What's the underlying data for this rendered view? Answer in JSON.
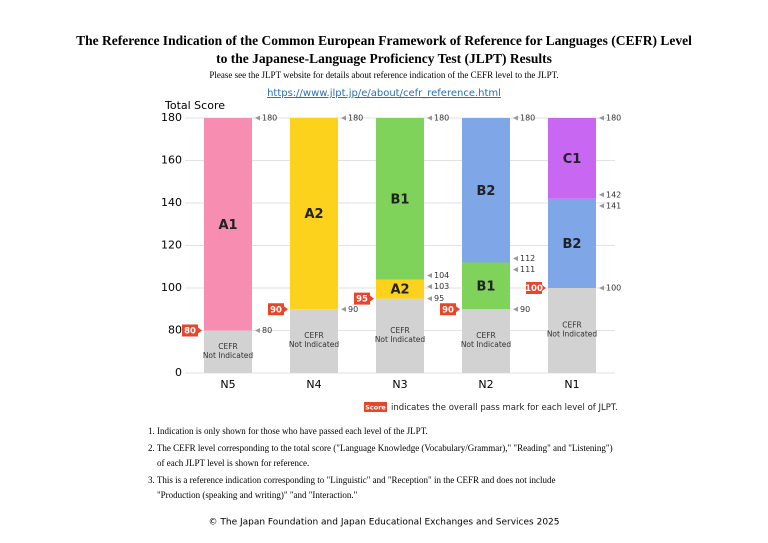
{
  "title_lines": [
    "The Reference Indication of the Common European Framework of Reference for Languages (CEFR) Level",
    "to the Japanese-Language Proficiency Test (JLPT) Results"
  ],
  "subtitle": "Please see the JLPT website for details about reference indication of the CEFR level to the JLPT.",
  "url": "https://www.jlpt.jp/e/about/cefr_reference.html",
  "chart_data": {
    "type": "range_bar",
    "y_label": "Total Score",
    "ylim": [
      0,
      180
    ],
    "yticks": [
      0,
      80,
      100,
      120,
      140,
      160,
      180
    ],
    "grid": true,
    "not_indicated_label": [
      "CEFR",
      "Not Indicated"
    ],
    "not_indicated_color": "#d2d2d2",
    "pass_mark_color": "#e9452b",
    "categories": [
      "N5",
      "N4",
      "N3",
      "N2",
      "N1"
    ],
    "bars": [
      {
        "pass_mark": 80,
        "levels": [
          {
            "name": "A1",
            "color": "#f78db1",
            "min": 80,
            "max": 180
          }
        ]
      },
      {
        "pass_mark": 90,
        "levels": [
          {
            "name": "A2",
            "color": "#fdd21c",
            "min": 90,
            "max": 180
          }
        ]
      },
      {
        "pass_mark": 95,
        "levels": [
          {
            "name": "A2",
            "color": "#fdd21c",
            "min": 95,
            "max": 103
          },
          {
            "name": "B1",
            "color": "#7fd35a",
            "min": 104,
            "max": 180
          }
        ]
      },
      {
        "pass_mark": 90,
        "levels": [
          {
            "name": "B1",
            "color": "#7fd35a",
            "min": 90,
            "max": 111
          },
          {
            "name": "B2",
            "color": "#7fa6e6",
            "min": 112,
            "max": 180
          }
        ]
      },
      {
        "pass_mark": 100,
        "levels": [
          {
            "name": "B2",
            "color": "#7fa6e6",
            "min": 100,
            "max": 141
          },
          {
            "name": "C1",
            "color": "#c868f2",
            "min": 142,
            "max": 180
          }
        ]
      }
    ],
    "legend": {
      "badge": "Score",
      "text": "indicates the overall pass mark for each level of JLPT."
    }
  },
  "notes": [
    [
      "1. Indication is only shown for those who have passed each level of the JLPT."
    ],
    [
      "2. The CEFR level corresponding to the total score (\"Language Knowledge (Vocabulary/Grammar),\" \"Reading\" and \"Listening\")",
      "of each JLPT level is shown for reference."
    ],
    [
      "3. This is a reference indication corresponding to \"Linguistic\" and \"Reception\" in the CEFR and does not include",
      "\"Production (speaking and writing)\" \"and \"Interaction.\""
    ]
  ],
  "footer": "© The Japan Foundation and Japan Educational Exchanges and Services 2025"
}
